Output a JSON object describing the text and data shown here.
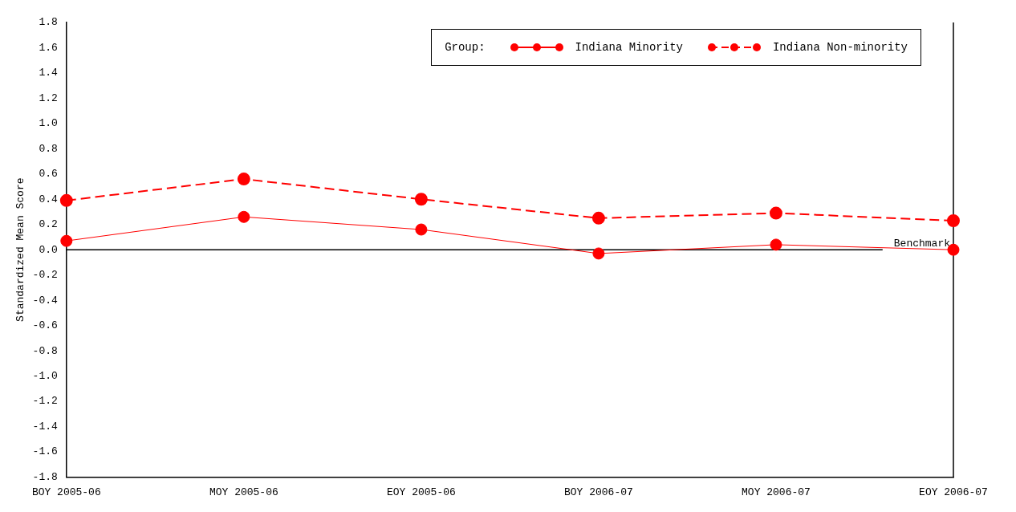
{
  "chart_data": {
    "type": "line",
    "ylabel": "Standardized Mean Score",
    "legend_title": "Group:",
    "categories": [
      "BOY 2005-06",
      "MOY 2005-06",
      "EOY 2005-06",
      "BOY 2006-07",
      "MOY 2006-07",
      "EOY 2006-07"
    ],
    "series": [
      {
        "name": "Indiana Minority",
        "color": "#ff0000",
        "line_style": "solid",
        "values": [
          0.07,
          0.26,
          0.16,
          -0.03,
          0.04,
          0.0
        ]
      },
      {
        "name": "Indiana Non-minority",
        "color": "#ff0000",
        "line_style": "dashed",
        "values": [
          0.39,
          0.56,
          0.4,
          0.25,
          0.29,
          0.23
        ]
      }
    ],
    "ylim": [
      -1.8,
      1.8
    ],
    "yticks": [
      {
        "value": -1.8,
        "label": "-1.8"
      },
      {
        "value": -1.6,
        "label": "-1.6"
      },
      {
        "value": -1.4,
        "label": "-1.4"
      },
      {
        "value": -1.2,
        "label": "-1.2"
      },
      {
        "value": -1.0,
        "label": "-1.0"
      },
      {
        "value": -0.8,
        "label": "-0.8"
      },
      {
        "value": -0.6,
        "label": "-0.6"
      },
      {
        "value": -0.4,
        "label": "-0.4"
      },
      {
        "value": -0.2,
        "label": "-0.2"
      },
      {
        "value": 0,
        "label": "0.0"
      },
      {
        "value": 0.2,
        "label": "0.2"
      },
      {
        "value": 0.4,
        "label": "0.4"
      },
      {
        "value": 0.6,
        "label": "0.6"
      },
      {
        "value": 0.8,
        "label": "0.8"
      },
      {
        "value": 1.0,
        "label": "1.0"
      },
      {
        "value": 1.2,
        "label": "1.2"
      },
      {
        "value": 1.4,
        "label": "1.4"
      },
      {
        "value": 1.6,
        "label": "1.6"
      },
      {
        "value": 1.8,
        "label": "1.8"
      }
    ],
    "ref_lines": [
      {
        "axis": "y",
        "value": 0,
        "label": "Benchmark",
        "color": "#000000"
      }
    ],
    "grid": false,
    "legend": "top right",
    "marker": "circle"
  }
}
